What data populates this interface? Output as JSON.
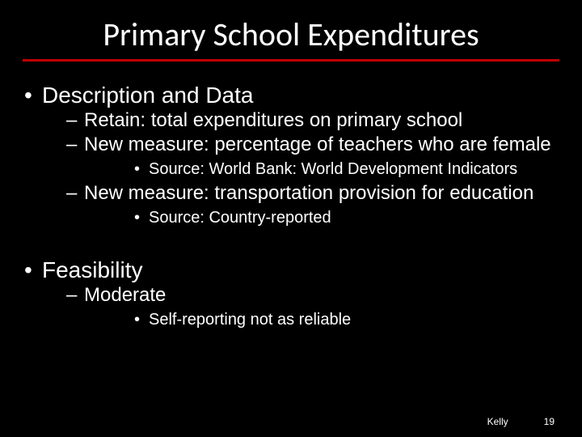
{
  "slide": {
    "title": "Primary School Expenditures",
    "title_fontsize": 40,
    "rule_color": "#c00000",
    "background_color": "#000000",
    "text_color": "#ffffff",
    "sections": [
      {
        "label": "Description and Data",
        "items": [
          {
            "label": "Retain: total expenditures on primary school",
            "sub": []
          },
          {
            "label": "New measure: percentage of teachers who are female",
            "sub": [
              "Source: World Bank: World Development Indicators"
            ]
          },
          {
            "label": "New measure: transportation provision for education",
            "sub": [
              "Source: Country-reported"
            ]
          }
        ]
      },
      {
        "label": "Feasibility",
        "items": [
          {
            "label": "Moderate",
            "sub": [
              "Self-reporting not as reliable"
            ]
          }
        ]
      }
    ],
    "footer": {
      "author": "Kelly",
      "page": "19"
    }
  }
}
